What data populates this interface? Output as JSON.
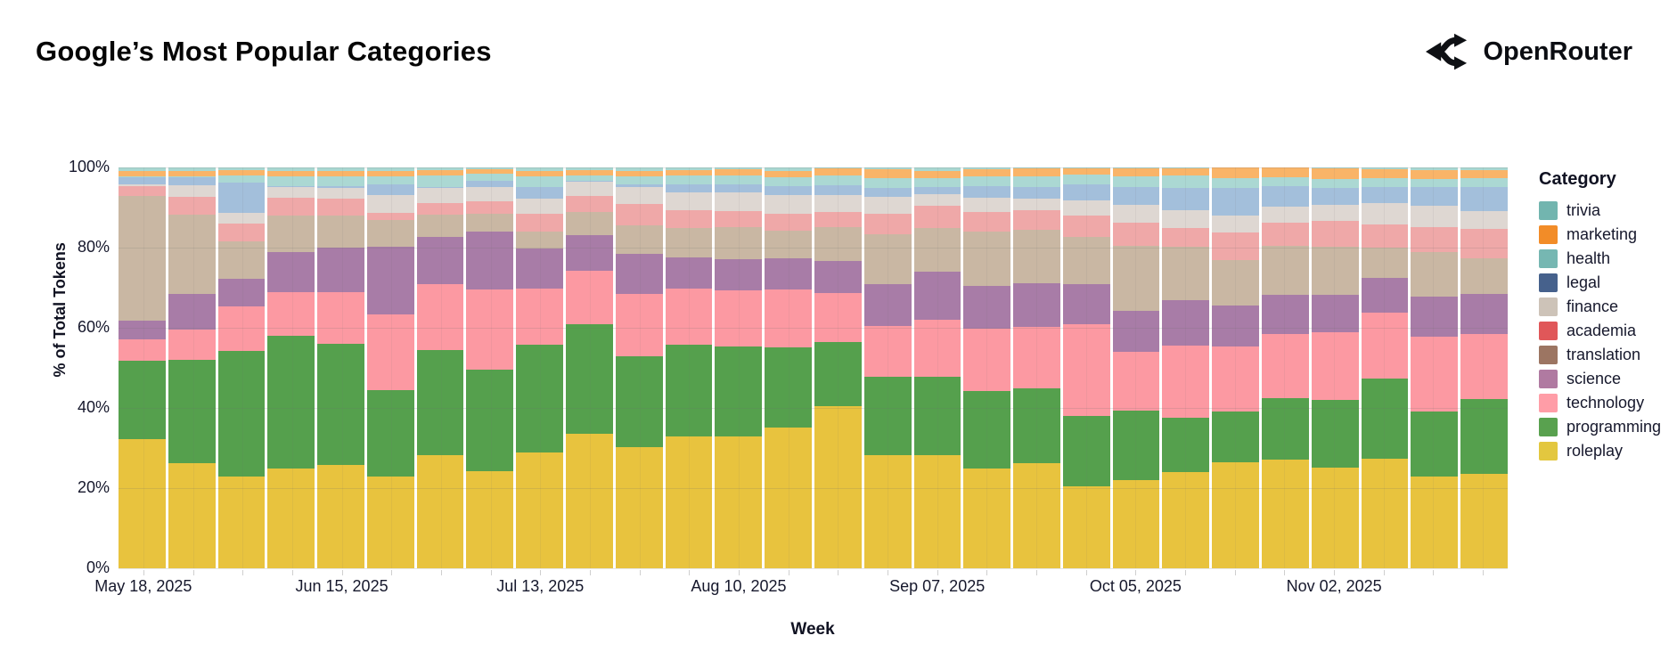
{
  "header": {
    "title": "Google’s Most Popular Categories",
    "brand": "OpenRouter"
  },
  "chart_data": {
    "type": "bar",
    "stacked": true,
    "normalized_percent": true,
    "title": "Google’s Most Popular Categories",
    "xlabel": "Week",
    "ylabel": "% of Total Tokens",
    "ylim": [
      0,
      100
    ],
    "ytick_labels": [
      "0%",
      "20%",
      "40%",
      "60%",
      "80%",
      "100%"
    ],
    "grid": true,
    "legend_title": "Category",
    "legend_position": "right",
    "x": [
      "May 18, 2025",
      "May 25, 2025",
      "Jun 01, 2025",
      "Jun 08, 2025",
      "Jun 15, 2025",
      "Jun 22, 2025",
      "Jun 29, 2025",
      "Jul 06, 2025",
      "Jul 13, 2025",
      "Jul 20, 2025",
      "Jul 27, 2025",
      "Aug 03, 2025",
      "Aug 10, 2025",
      "Aug 17, 2025",
      "Aug 24, 2025",
      "Aug 31, 2025",
      "Sep 07, 2025",
      "Sep 14, 2025",
      "Sep 21, 2025",
      "Sep 28, 2025",
      "Oct 05, 2025",
      "Oct 12, 2025",
      "Oct 19, 2025",
      "Oct 26, 2025",
      "Nov 02, 2025",
      "Nov 09, 2025",
      "Nov 16, 2025",
      "Nov 23, 2025"
    ],
    "x_tick_labels": {
      "0": "May 18, 2025",
      "4": "Jun 15, 2025",
      "8": "Jul 13, 2025",
      "12": "Aug 10, 2025",
      "16": "Sep 07, 2025",
      "20": "Oct 05, 2025",
      "24": "Nov 02, 2025"
    },
    "series": [
      {
        "name": "trivia",
        "legend_color": "#72b5af",
        "bar_color": "#a9d7d1",
        "legend_textured": false,
        "bar_textured": true,
        "values": [
          0.9,
          0.9,
          0.7,
          0.9,
          0.9,
          0.9,
          0.7,
          0.5,
          0.9,
          0.7,
          0.9,
          0.7,
          0.5,
          0.9,
          0.3,
          0.5,
          0.9,
          0.4,
          0.2,
          0.2,
          0.2,
          0.2,
          0.1,
          0.1,
          0.2,
          0.5,
          0.7,
          0.7
        ]
      },
      {
        "name": "marketing",
        "legend_color": "#f28c28",
        "bar_color": "#f9b468",
        "legend_textured": false,
        "bar_textured": false,
        "values": [
          1.3,
          1.3,
          1.3,
          1.3,
          1.3,
          1.3,
          1.4,
          1.0,
          1.3,
          1.3,
          1.3,
          1.4,
          1.5,
          1.5,
          1.8,
          2.1,
          1.7,
          1.9,
          2.1,
          1.6,
          2.0,
          1.9,
          2.6,
          2.4,
          2.6,
          2.2,
          2.1,
          1.9
        ]
      },
      {
        "name": "health",
        "legend_color": "#76b7b2",
        "bar_color": "#abd8d3",
        "legend_textured": false,
        "bar_textured": false,
        "values": [
          0.3,
          0.2,
          1.8,
          2.4,
          2.6,
          2.0,
          2.7,
          1.8,
          2.8,
          1.3,
          2.0,
          2.2,
          2.2,
          2.2,
          2.4,
          2.5,
          2.2,
          2.4,
          2.7,
          2.4,
          2.6,
          2.9,
          2.5,
          2.2,
          2.4,
          2.1,
          2.2,
          2.2
        ]
      },
      {
        "name": "legal",
        "legend_color": "#46618c",
        "bar_color": "#a3bfdb",
        "legend_textured": true,
        "bar_textured": true,
        "values": [
          1.7,
          2.0,
          7.6,
          0.4,
          0.3,
          2.6,
          0.3,
          1.6,
          2.9,
          0.2,
          0.6,
          1.9,
          2.1,
          2.2,
          2.4,
          2.2,
          1.8,
          2.9,
          2.7,
          4.0,
          4.6,
          5.7,
          6.9,
          5.2,
          4.1,
          4.2,
          4.6,
          6.2
        ]
      },
      {
        "name": "finance",
        "legend_color": "#cdc3b8",
        "bar_color": "#ded7d2",
        "legend_textured": true,
        "bar_textured": true,
        "values": [
          0.5,
          2.9,
          2.7,
          2.6,
          2.7,
          4.6,
          3.8,
          3.5,
          3.7,
          3.7,
          4.4,
          4.4,
          4.6,
          4.8,
          4.3,
          4.3,
          2.9,
          3.5,
          2.9,
          3.9,
          4.4,
          4.3,
          4.1,
          3.9,
          4.1,
          5.2,
          5.2,
          4.3
        ]
      },
      {
        "name": "academia",
        "legend_color": "#e05759",
        "bar_color": "#efa8a8",
        "legend_textured": false,
        "bar_textured": false,
        "values": [
          2.5,
          4.6,
          4.4,
          4.4,
          4.3,
          1.6,
          2.9,
          3.1,
          4.4,
          4.0,
          5.2,
          4.4,
          4.1,
          4.1,
          3.8,
          5.2,
          5.7,
          4.9,
          4.9,
          5.4,
          5.7,
          4.7,
          7.0,
          5.7,
          6.5,
          5.7,
          6.3,
          7.4
        ]
      },
      {
        "name": "translation",
        "legend_color": "#9c7562",
        "bar_color": "#c9b7a3",
        "legend_textured": false,
        "bar_textured": false,
        "values": [
          31.0,
          19.8,
          9.4,
          9.2,
          8.0,
          6.8,
          5.7,
          4.4,
          4.3,
          5.7,
          7.2,
          7.5,
          7.9,
          7.0,
          8.3,
          12.4,
          10.9,
          13.6,
          13.5,
          11.8,
          16.4,
          13.5,
          11.3,
          12.3,
          11.9,
          7.6,
          11.1,
          9.0
        ]
      },
      {
        "name": "science",
        "legend_color": "#b07aa1",
        "bar_color": "#a87ca7",
        "legend_textured": false,
        "bar_textured": false,
        "values": [
          4.5,
          8.7,
          6.9,
          10.0,
          11.1,
          16.9,
          11.8,
          14.5,
          9.9,
          9.0,
          9.9,
          7.7,
          7.8,
          7.7,
          8.1,
          10.3,
          11.8,
          10.8,
          10.8,
          9.9,
          10.1,
          11.3,
          10.3,
          9.8,
          9.4,
          8.8,
          10.1,
          9.8
        ]
      },
      {
        "name": "technology",
        "legend_color": "#ff9da7",
        "bar_color": "#fc99a2",
        "legend_textured": false,
        "bar_textured": false,
        "values": [
          5.5,
          7.7,
          11.1,
          10.8,
          13.0,
          18.9,
          16.4,
          20.0,
          14.0,
          13.3,
          15.5,
          14.0,
          14.0,
          14.4,
          12.3,
          12.8,
          14.3,
          15.5,
          15.3,
          23.1,
          14.7,
          17.8,
          16.2,
          16.0,
          16.9,
          16.4,
          18.6,
          16.4
        ]
      },
      {
        "name": "programming",
        "legend_color": "#59a14f",
        "bar_color": "#55a04d",
        "legend_textured": false,
        "bar_textured": false,
        "values": [
          19.5,
          25.8,
          31.2,
          33.2,
          30.4,
          21.5,
          26.2,
          25.4,
          27.0,
          27.5,
          22.5,
          22.8,
          22.4,
          20.0,
          16.1,
          19.6,
          19.6,
          19.5,
          18.8,
          17.5,
          17.3,
          13.6,
          12.8,
          15.5,
          16.9,
          19.9,
          16.2,
          18.6
        ]
      },
      {
        "name": "roleplay",
        "legend_color": "#e3c73f",
        "bar_color": "#e8c33e",
        "legend_textured": false,
        "bar_textured": false,
        "values": [
          32.0,
          26.2,
          23.0,
          24.9,
          25.8,
          22.8,
          28.4,
          24.2,
          28.9,
          33.5,
          30.2,
          32.8,
          33.0,
          35.2,
          40.5,
          28.2,
          28.2,
          24.9,
          26.2,
          20.5,
          22.1,
          24.0,
          26.4,
          27.1,
          25.2,
          27.4,
          23.0,
          23.6
        ]
      }
    ]
  }
}
